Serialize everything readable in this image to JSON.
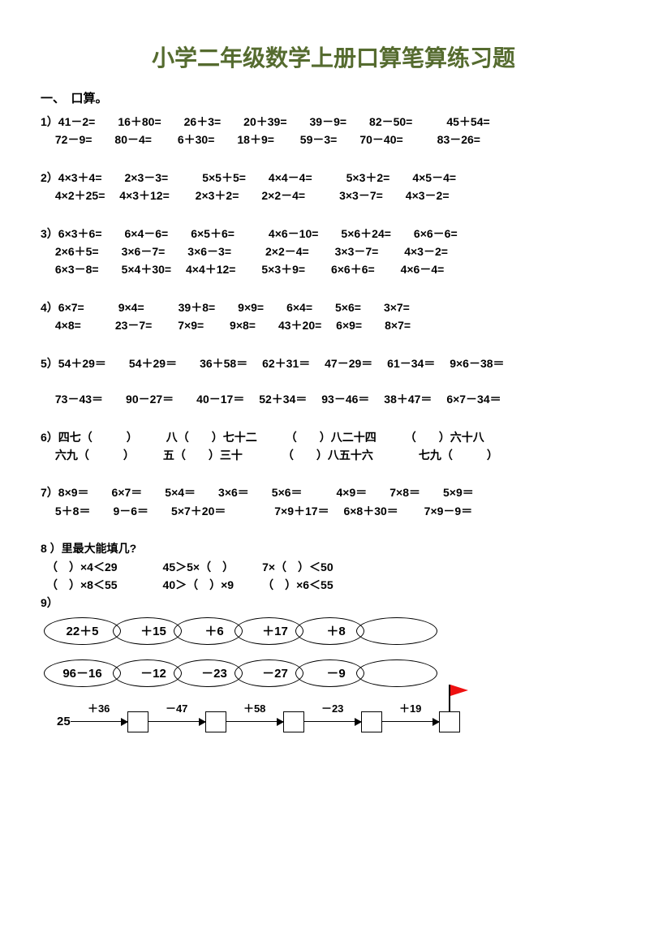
{
  "title": "小学二年级数学上册口算笔算练习题",
  "section1_label": "一、　口算。",
  "blocks": {
    "b1a": "1）41－2=　　16＋80=　　26＋3=　　20＋39=　　39－9=　　82－50=　　　45＋54=",
    "b1b": "　 72－9=　　80－4=　　 6＋30=　　18＋9=　　 59－3=　　70－40=　　　83－26=",
    "b2a": "2）4×3＋4=　　2×3－3=　　　5×5＋5=　　4×4－4=　　　5×3＋2=　　4×5－4=",
    "b2b": "　 4×2＋25=　 4×3＋12=　　 2×3＋2=　　2×2－4=　　　3×3－7=　　4×3－2=",
    "b3a": "3）6×3＋6=　　6×4－6=　　6×5＋6=　　　4×6－10=　　5×6＋24=　　6×6－6=",
    "b3b": "　 2×6＋5=　　3×6－7=　　3×6－3=　　　2×2－4=　　 3×3－7=　　 4×3－2=",
    "b3c": "　 6×3－8=　　5×4＋30=　 4×4＋12=　　 5×3＋9=　　 6×6＋6=　　 4×6－4=",
    "b4a": "4）6×7=　　　9×4=　　　39＋8=　　9×9=　　6×4=　　5×6=　　3×7=",
    "b4b": "　 4×8=　　　23－7=　　 7×9=　　 9×8=　　43＋20=　 6×9=　　8×7=",
    "b5a": "5）54＋29＝　　54＋29＝　　36＋58＝　 62＋31＝　 47－29＝　 61－34＝　 9×6－38＝",
    "b5b": "　 73－43＝　　90－27＝　　40－17＝　 52＋34＝　 93－46＝　 38＋47＝　 6×7－34＝",
    "b6a": "6）四七（　　　）　　　八（　　）七十二　　　（　　）八二十四　　　（　　）六十八",
    "b6b": "　 六九（　　　）　　　五（　　）三十　　　　（　　）八五十六　　　　七九（　　　）",
    "b7a": "7）8×9＝　　6×7＝　　5×4＝　　3×6＝　　5×6＝　　　4×9＝　　7×8＝　　5×9＝",
    "b7b": "　 5＋8＝　　9－6＝　　5×7＋20＝　　　　 7×9＋17＝　 6×8＋30＝　　 7×9－9＝",
    "b8a": "8 ）里最大能填几?",
    "b8b": "　（　）×4＜29　　　　45＞5×（　）　　　7×（　）＜50",
    "b8c": "　（　）×8＜55　　　　40＞（　）×9　　　（　）×6＜55",
    "b9": "9）"
  },
  "chain1": [
    "22＋5",
    "　＋15",
    "　＋6",
    "　＋17",
    "　＋8",
    "　　　"
  ],
  "chain2": [
    "96－16",
    "　－12",
    "　－23",
    "　－27",
    "　－9",
    "　　　"
  ],
  "flow": {
    "start": "25",
    "ops": [
      "＋36",
      "－47",
      "＋58",
      "－23",
      "＋19"
    ]
  },
  "colors": {
    "title": "#556b2f",
    "flag": "#e11",
    "text": "#000000"
  }
}
